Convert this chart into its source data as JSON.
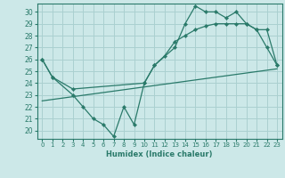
{
  "xlabel": "Humidex (Indice chaleur)",
  "bg_color": "#cce8e8",
  "grid_color": "#aad0d0",
  "line_color": "#2a7a6a",
  "xlim": [
    -0.5,
    23.5
  ],
  "ylim": [
    19.3,
    30.7
  ],
  "yticks": [
    20,
    21,
    22,
    23,
    24,
    25,
    26,
    27,
    28,
    29,
    30
  ],
  "xticks": [
    0,
    1,
    2,
    3,
    4,
    5,
    6,
    7,
    8,
    9,
    10,
    11,
    12,
    13,
    14,
    15,
    16,
    17,
    18,
    19,
    20,
    21,
    22,
    23
  ],
  "line1_x": [
    0,
    1,
    3,
    4,
    5,
    6,
    7,
    8,
    9,
    10,
    11,
    13,
    14,
    15,
    16,
    17,
    18,
    19,
    20,
    21,
    22,
    23
  ],
  "line1_y": [
    26,
    24.5,
    23,
    22,
    21,
    20.5,
    19.5,
    22,
    20.5,
    24,
    25.5,
    27,
    29,
    30.5,
    30,
    30,
    29.5,
    30,
    29,
    28.5,
    27,
    25.5
  ],
  "line2_x": [
    0,
    23
  ],
  "line2_y": [
    22.5,
    25.2
  ],
  "line3_x": [
    0,
    1,
    3,
    10,
    11,
    12,
    13,
    14,
    15,
    16,
    17,
    18,
    19,
    20,
    21,
    22,
    23
  ],
  "line3_y": [
    26,
    24.5,
    23.5,
    24,
    25.5,
    26.3,
    27.5,
    28,
    28.5,
    28.8,
    29,
    29,
    29,
    29,
    28.5,
    28.5,
    25.5
  ]
}
